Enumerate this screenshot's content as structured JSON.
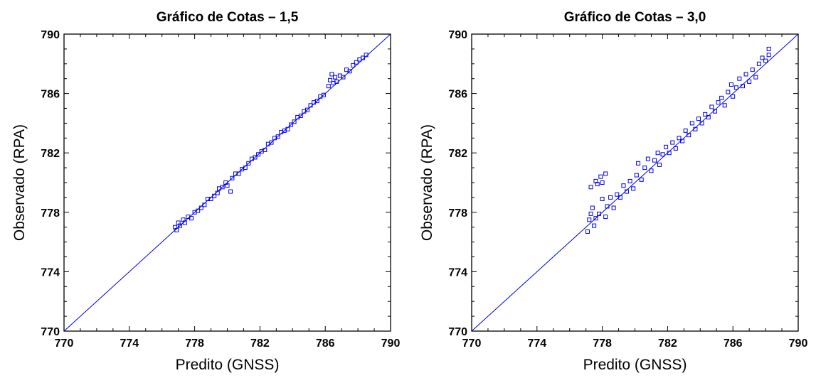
{
  "chart_data": [
    {
      "type": "scatter",
      "title": "Gráfico de Cotas – 1,5",
      "xlabel": "Predito (GNSS)",
      "ylabel": "Observado (RPA)",
      "xlim": [
        770,
        790
      ],
      "ylim": [
        770,
        790
      ],
      "xticks": [
        "770",
        "774",
        "778",
        "782",
        "786",
        "790"
      ],
      "yticks": [
        "790",
        "786",
        "782",
        "778",
        "774",
        "770"
      ],
      "grid": false,
      "marker": "open-square",
      "color": "#0000ee",
      "reference_line": {
        "x": [
          770,
          790
        ],
        "y": [
          770,
          790
        ]
      },
      "points": [
        [
          776.8,
          777.0
        ],
        [
          776.9,
          776.8
        ],
        [
          777.0,
          777.3
        ],
        [
          777.1,
          777.1
        ],
        [
          777.3,
          777.5
        ],
        [
          777.4,
          777.3
        ],
        [
          777.6,
          777.7
        ],
        [
          777.8,
          777.6
        ],
        [
          778.0,
          778.0
        ],
        [
          778.2,
          778.1
        ],
        [
          778.4,
          778.3
        ],
        [
          778.6,
          778.5
        ],
        [
          778.8,
          778.9
        ],
        [
          779.0,
          778.9
        ],
        [
          779.2,
          779.1
        ],
        [
          779.4,
          779.3
        ],
        [
          779.5,
          779.6
        ],
        [
          779.7,
          779.7
        ],
        [
          779.9,
          780.0
        ],
        [
          780.0,
          779.8
        ],
        [
          780.2,
          779.4
        ],
        [
          780.3,
          780.3
        ],
        [
          780.5,
          780.6
        ],
        [
          780.7,
          780.6
        ],
        [
          780.9,
          780.9
        ],
        [
          781.1,
          781.0
        ],
        [
          781.3,
          781.3
        ],
        [
          781.5,
          781.6
        ],
        [
          781.7,
          781.7
        ],
        [
          781.9,
          781.9
        ],
        [
          782.1,
          782.1
        ],
        [
          782.3,
          782.2
        ],
        [
          782.5,
          782.6
        ],
        [
          782.7,
          782.7
        ],
        [
          782.9,
          783.0
        ],
        [
          783.1,
          783.1
        ],
        [
          783.3,
          783.4
        ],
        [
          783.5,
          783.5
        ],
        [
          783.7,
          783.6
        ],
        [
          783.9,
          783.9
        ],
        [
          784.1,
          784.1
        ],
        [
          784.3,
          784.4
        ],
        [
          784.5,
          784.5
        ],
        [
          784.7,
          784.8
        ],
        [
          784.9,
          784.9
        ],
        [
          785.1,
          785.2
        ],
        [
          785.3,
          785.4
        ],
        [
          785.5,
          785.5
        ],
        [
          785.7,
          785.8
        ],
        [
          785.9,
          785.9
        ],
        [
          786.2,
          786.5
        ],
        [
          786.3,
          786.9
        ],
        [
          786.4,
          787.3
        ],
        [
          786.5,
          786.7
        ],
        [
          786.6,
          787.1
        ],
        [
          786.7,
          786.8
        ],
        [
          786.9,
          787.2
        ],
        [
          787.1,
          787.1
        ],
        [
          787.3,
          787.6
        ],
        [
          787.5,
          787.5
        ],
        [
          787.7,
          787.9
        ],
        [
          787.9,
          788.1
        ],
        [
          788.1,
          788.3
        ],
        [
          788.3,
          788.4
        ],
        [
          788.5,
          788.6
        ]
      ]
    },
    {
      "type": "scatter",
      "title": "Gráfico de Cotas – 3,0",
      "xlabel": "Predito (GNSS)",
      "ylabel": "Observado (RPA)",
      "xlim": [
        770,
        790
      ],
      "ylim": [
        770,
        790
      ],
      "xticks": [
        "770",
        "774",
        "778",
        "782",
        "786",
        "790"
      ],
      "yticks": [
        "790",
        "786",
        "782",
        "778",
        "774",
        "770"
      ],
      "grid": false,
      "marker": "open-square",
      "color": "#0000ee",
      "reference_line": {
        "x": [
          770,
          790
        ],
        "y": [
          770,
          790
        ]
      },
      "points": [
        [
          777.1,
          776.7
        ],
        [
          777.2,
          777.5
        ],
        [
          777.3,
          777.9
        ],
        [
          777.4,
          778.3
        ],
        [
          777.5,
          777.1
        ],
        [
          777.6,
          777.6
        ],
        [
          777.3,
          779.7
        ],
        [
          777.6,
          780.1
        ],
        [
          777.9,
          780.4
        ],
        [
          778.2,
          780.6
        ],
        [
          777.7,
          779.9
        ],
        [
          778.0,
          780.0
        ],
        [
          777.8,
          777.9
        ],
        [
          778.0,
          778.9
        ],
        [
          778.2,
          777.7
        ],
        [
          778.3,
          778.4
        ],
        [
          778.5,
          779.0
        ],
        [
          778.7,
          778.3
        ],
        [
          778.9,
          779.2
        ],
        [
          779.1,
          779.0
        ],
        [
          779.3,
          779.8
        ],
        [
          779.5,
          779.4
        ],
        [
          779.7,
          780.1
        ],
        [
          779.9,
          779.6
        ],
        [
          780.1,
          780.5
        ],
        [
          780.2,
          781.3
        ],
        [
          780.4,
          780.2
        ],
        [
          780.6,
          781.0
        ],
        [
          780.8,
          781.6
        ],
        [
          781.0,
          780.8
        ],
        [
          781.2,
          781.5
        ],
        [
          781.4,
          782.0
        ],
        [
          781.5,
          781.2
        ],
        [
          781.7,
          781.9
        ],
        [
          781.9,
          782.4
        ],
        [
          782.1,
          782.0
        ],
        [
          782.3,
          782.7
        ],
        [
          782.5,
          782.3
        ],
        [
          782.7,
          783.0
        ],
        [
          782.9,
          782.8
        ],
        [
          783.1,
          783.5
        ],
        [
          783.3,
          783.2
        ],
        [
          783.5,
          784.0
        ],
        [
          783.7,
          783.6
        ],
        [
          783.9,
          784.3
        ],
        [
          784.1,
          784.0
        ],
        [
          784.3,
          784.6
        ],
        [
          784.5,
          784.4
        ],
        [
          784.7,
          785.1
        ],
        [
          784.9,
          784.8
        ],
        [
          785.1,
          785.4
        ],
        [
          785.3,
          785.7
        ],
        [
          785.5,
          785.2
        ],
        [
          785.7,
          786.1
        ],
        [
          785.9,
          786.6
        ],
        [
          786.0,
          785.8
        ],
        [
          786.2,
          786.4
        ],
        [
          786.4,
          787.0
        ],
        [
          786.6,
          786.5
        ],
        [
          786.8,
          787.3
        ],
        [
          787.0,
          786.8
        ],
        [
          787.2,
          787.6
        ],
        [
          787.4,
          787.1
        ],
        [
          787.6,
          788.0
        ],
        [
          787.8,
          788.4
        ],
        [
          788.0,
          788.2
        ],
        [
          788.2,
          789.0
        ],
        [
          788.2,
          788.6
        ]
      ]
    }
  ]
}
